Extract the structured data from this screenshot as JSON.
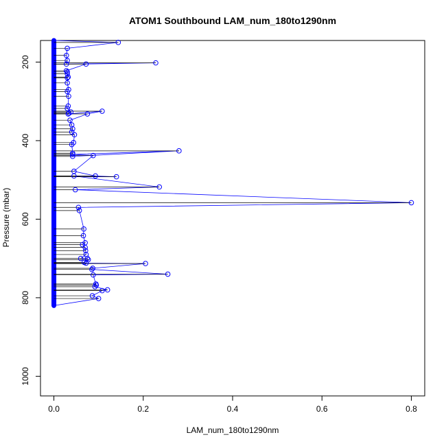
{
  "chart_data": {
    "type": "line",
    "title": "ATOM1 Southbound LAM_num_180to1290nm",
    "xlabel": "LAM_num_180to1290nm",
    "ylabel": "Pressure (mbar)",
    "xlim": [
      -0.03,
      0.83
    ],
    "ylim": [
      1050,
      145
    ],
    "y_inverted": true,
    "x_ticks": [
      0.0,
      0.2,
      0.4,
      0.6,
      0.8
    ],
    "x_tick_labels": [
      "0.0",
      "0.2",
      "0.4",
      "0.6",
      "0.8"
    ],
    "y_ticks": [
      200,
      400,
      600,
      800,
      1000
    ],
    "y_tick_labels": [
      "200",
      "400",
      "600",
      "800",
      "1000"
    ],
    "grid": false,
    "colors": {
      "series": "#0000ff",
      "reference": "#000000"
    },
    "series": [
      {
        "x": [
          0.0,
          0.144,
          0.03,
          0.028,
          0.03,
          0.028,
          0.228,
          0.072,
          0.028,
          0.03,
          0.03,
          0.032,
          0.03,
          0.03,
          0.033,
          0.03,
          0.033,
          0.032,
          0.03,
          0.038,
          0.034,
          0.032,
          0.108,
          0.075,
          0.036,
          0.04,
          0.042,
          0.04,
          0.046,
          0.044,
          0.04,
          0.042,
          0.042,
          0.28,
          0.042,
          0.088,
          0.045,
          0.093,
          0.14,
          0.045,
          0.236,
          0.048,
          0.8,
          0.055,
          0.057,
          0.067,
          0.066,
          0.07,
          0.064,
          0.07,
          0.071,
          0.072,
          0.06,
          0.075,
          0.077,
          0.068,
          0.072,
          0.205,
          0.087,
          0.085,
          0.255,
          0.088,
          0.094,
          0.095,
          0.092,
          0.12,
          0.108,
          0.086,
          0.1,
          0.0
        ],
        "y": [
          145,
          150,
          165,
          183,
          196,
          205,
          202,
          205,
          222,
          225,
          230,
          238,
          240,
          253,
          270,
          275,
          287,
          312,
          318,
          327,
          330,
          332,
          325,
          332,
          348,
          360,
          370,
          378,
          385,
          405,
          410,
          432,
          440,
          426,
          435,
          438,
          478,
          490,
          492,
          490,
          518,
          525,
          558,
          570,
          578,
          625,
          642,
          660,
          665,
          672,
          680,
          690,
          700,
          700,
          703,
          710,
          712,
          713,
          725,
          728,
          740,
          742,
          765,
          768,
          772,
          780,
          782,
          795,
          802,
          820
        ]
      }
    ],
    "reference": {
      "x": [
        0.0,
        0.0
      ],
      "y": [
        145,
        820
      ]
    }
  }
}
